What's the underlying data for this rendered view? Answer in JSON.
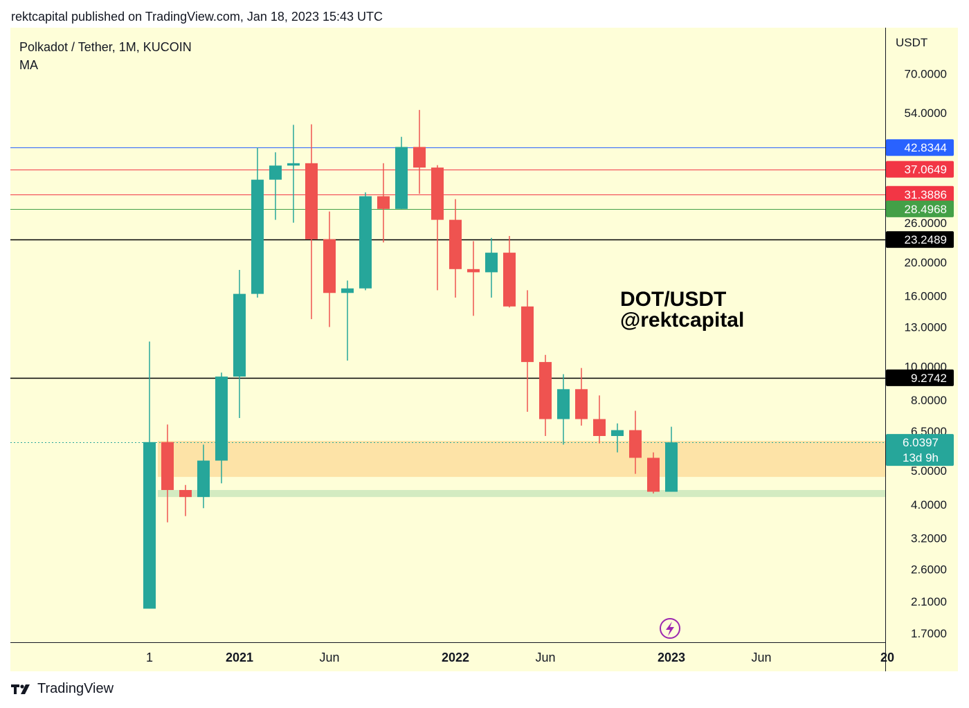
{
  "header": {
    "published": "rektcapital published on TradingView.com, Jan 18, 2023 15:43 UTC"
  },
  "legend": {
    "symbol": "Polkadot / Tether, 1M, KUCOIN",
    "indicator": "MA"
  },
  "annotation": {
    "line1": "DOT/USDT",
    "line2": "@rektcapital"
  },
  "footer": {
    "brand": "TradingView",
    "icon": "tradingview-logo-icon"
  },
  "price_axis": {
    "currency": "USDT"
  },
  "last_price": {
    "value": "6.0397",
    "countdown": "13d 9h",
    "color": "#26a69a"
  },
  "colors": {
    "background": "#fefed8",
    "up": "#26a69a",
    "down": "#ef5350",
    "zone_orange": "#fde3a7",
    "zone_green": "#d3ebc1"
  },
  "chart_data": {
    "type": "candlestick",
    "title": "Polkadot / Tether, 1M, KUCOIN",
    "scale": "log",
    "ylim": [
      1.6,
      95
    ],
    "y_ticks": [
      {
        "value": 70,
        "label": "70.0000"
      },
      {
        "value": 54,
        "label": "54.0000"
      },
      {
        "value": 26,
        "label": "26.0000"
      },
      {
        "value": 20,
        "label": "20.0000"
      },
      {
        "value": 16,
        "label": "16.0000"
      },
      {
        "value": 13,
        "label": "13.0000"
      },
      {
        "value": 10,
        "label": "10.0000"
      },
      {
        "value": 8,
        "label": "8.0000"
      },
      {
        "value": 6.5,
        "label": "6.5000"
      },
      {
        "value": 5,
        "label": "5.0000"
      },
      {
        "value": 4,
        "label": "4.0000"
      },
      {
        "value": 3.2,
        "label": "3.2000"
      },
      {
        "value": 2.6,
        "label": "2.6000"
      },
      {
        "value": 2.1,
        "label": "2.1000"
      },
      {
        "value": 1.7,
        "label": "1.7000"
      }
    ],
    "x_ticks": [
      {
        "index": 0,
        "label": "1",
        "bold": false
      },
      {
        "index": 5,
        "label": "2021",
        "bold": true
      },
      {
        "index": 10,
        "label": "Jun",
        "bold": false
      },
      {
        "index": 17,
        "label": "2022",
        "bold": true
      },
      {
        "index": 22,
        "label": "Jun",
        "bold": false
      },
      {
        "index": 29,
        "label": "2023",
        "bold": true
      },
      {
        "index": 34,
        "label": "Jun",
        "bold": false
      },
      {
        "index": 41,
        "label": "20",
        "bold": true
      }
    ],
    "candles": [
      {
        "month": "2020-08",
        "open": 2.0,
        "high": 11.8,
        "low": 2.0,
        "close": 6.05
      },
      {
        "month": "2020-09",
        "open": 6.05,
        "high": 6.8,
        "low": 3.55,
        "close": 4.4
      },
      {
        "month": "2020-10",
        "open": 4.4,
        "high": 4.55,
        "low": 3.7,
        "close": 4.2
      },
      {
        "month": "2020-11",
        "open": 4.2,
        "high": 5.95,
        "low": 3.9,
        "close": 5.35
      },
      {
        "month": "2020-12",
        "open": 5.35,
        "high": 9.6,
        "low": 4.6,
        "close": 9.35
      },
      {
        "month": "2021-01",
        "open": 9.35,
        "high": 19.0,
        "low": 7.1,
        "close": 16.2
      },
      {
        "month": "2021-02",
        "open": 16.2,
        "high": 42.8,
        "low": 15.8,
        "close": 34.6
      },
      {
        "month": "2021-03",
        "open": 34.6,
        "high": 41.5,
        "low": 26.5,
        "close": 38.0
      },
      {
        "month": "2021-04",
        "open": 38.0,
        "high": 49.8,
        "low": 26.0,
        "close": 38.6
      },
      {
        "month": "2021-05",
        "open": 38.6,
        "high": 50.0,
        "low": 13.7,
        "close": 23.3
      },
      {
        "month": "2021-06",
        "open": 23.3,
        "high": 28.0,
        "low": 13.0,
        "close": 16.3
      },
      {
        "month": "2021-07",
        "open": 16.3,
        "high": 17.7,
        "low": 10.4,
        "close": 16.8
      },
      {
        "month": "2021-08",
        "open": 16.8,
        "high": 31.8,
        "low": 16.6,
        "close": 31.0
      },
      {
        "month": "2021-09",
        "open": 31.0,
        "high": 38.6,
        "low": 22.8,
        "close": 28.5
      },
      {
        "month": "2021-10",
        "open": 28.5,
        "high": 46.0,
        "low": 28.5,
        "close": 43.0
      },
      {
        "month": "2021-11",
        "open": 43.0,
        "high": 55.0,
        "low": 31.5,
        "close": 37.5
      },
      {
        "month": "2021-12",
        "open": 37.5,
        "high": 38.1,
        "low": 16.6,
        "close": 26.5
      },
      {
        "month": "2022-01",
        "open": 26.5,
        "high": 30.4,
        "low": 15.8,
        "close": 19.1
      },
      {
        "month": "2022-02",
        "open": 19.1,
        "high": 23.0,
        "low": 14.0,
        "close": 18.7
      },
      {
        "month": "2022-03",
        "open": 18.7,
        "high": 23.5,
        "low": 15.8,
        "close": 21.3
      },
      {
        "month": "2022-04",
        "open": 21.3,
        "high": 23.8,
        "low": 14.8,
        "close": 14.9
      },
      {
        "month": "2022-05",
        "open": 14.9,
        "high": 16.6,
        "low": 7.4,
        "close": 10.3
      },
      {
        "month": "2022-06",
        "open": 10.3,
        "high": 10.8,
        "low": 6.3,
        "close": 7.05
      },
      {
        "month": "2022-07",
        "open": 7.05,
        "high": 9.5,
        "low": 5.95,
        "close": 8.6
      },
      {
        "month": "2022-08",
        "open": 8.6,
        "high": 9.9,
        "low": 6.75,
        "close": 7.05
      },
      {
        "month": "2022-09",
        "open": 7.05,
        "high": 8.25,
        "low": 6.0,
        "close": 6.3
      },
      {
        "month": "2022-10",
        "open": 6.3,
        "high": 6.85,
        "low": 5.65,
        "close": 6.55
      },
      {
        "month": "2022-11",
        "open": 6.55,
        "high": 7.45,
        "low": 4.9,
        "close": 5.45
      },
      {
        "month": "2022-12",
        "open": 5.45,
        "high": 5.65,
        "low": 4.3,
        "close": 4.35
      },
      {
        "month": "2023-01",
        "open": 4.35,
        "high": 6.7,
        "low": 4.35,
        "close": 6.04
      }
    ],
    "levels": [
      {
        "value": 42.8344,
        "label": "42.8344",
        "color": "#2962ff",
        "text_color": "#ffffff"
      },
      {
        "value": 37.0649,
        "label": "37.0649",
        "color": "#f23645",
        "text_color": "#ffffff"
      },
      {
        "value": 31.3886,
        "label": "31.3886",
        "color": "#f23645",
        "text_color": "#ffffff"
      },
      {
        "value": 28.4968,
        "label": "28.4968",
        "color": "#43a047",
        "text_color": "#ffffff"
      },
      {
        "value": 23.2489,
        "label": "23.2489",
        "color": "#000000",
        "text_color": "#ffffff"
      },
      {
        "value": 9.2742,
        "label": "9.2742",
        "color": "#000000",
        "text_color": "#ffffff"
      }
    ],
    "zones": [
      {
        "name": "support-zone-orange",
        "from": 4.8,
        "to": 6.1,
        "color": "#fde3a7"
      },
      {
        "name": "support-zone-green",
        "from": 4.2,
        "to": 4.4,
        "color": "#d3ebc1"
      }
    ]
  }
}
